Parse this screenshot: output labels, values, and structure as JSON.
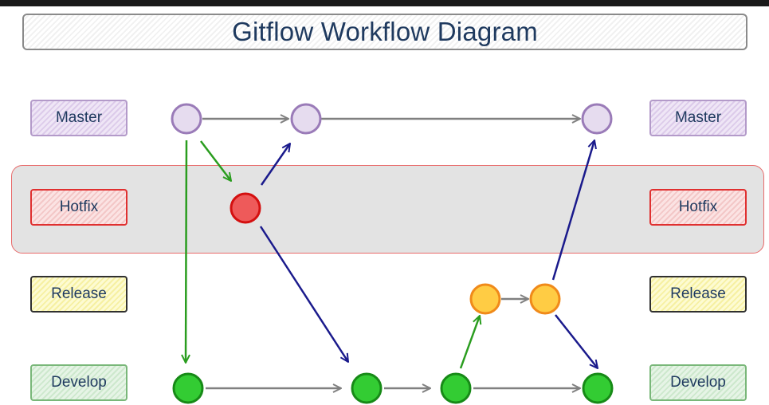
{
  "title": "Gitflow Workflow Diagram",
  "lanes": {
    "master": "Master",
    "hotfix": "Hotfix",
    "release": "Release",
    "develop": "Develop"
  },
  "colors": {
    "master_node": "#e6dcef",
    "hotfix_node": "#ee5a5a",
    "release_node": "#ffcc44",
    "develop_node": "#33cc33",
    "branch_arrow": "#2a9d1f",
    "merge_arrow": "#1a1a8c",
    "flow_arrow": "#808080"
  }
}
